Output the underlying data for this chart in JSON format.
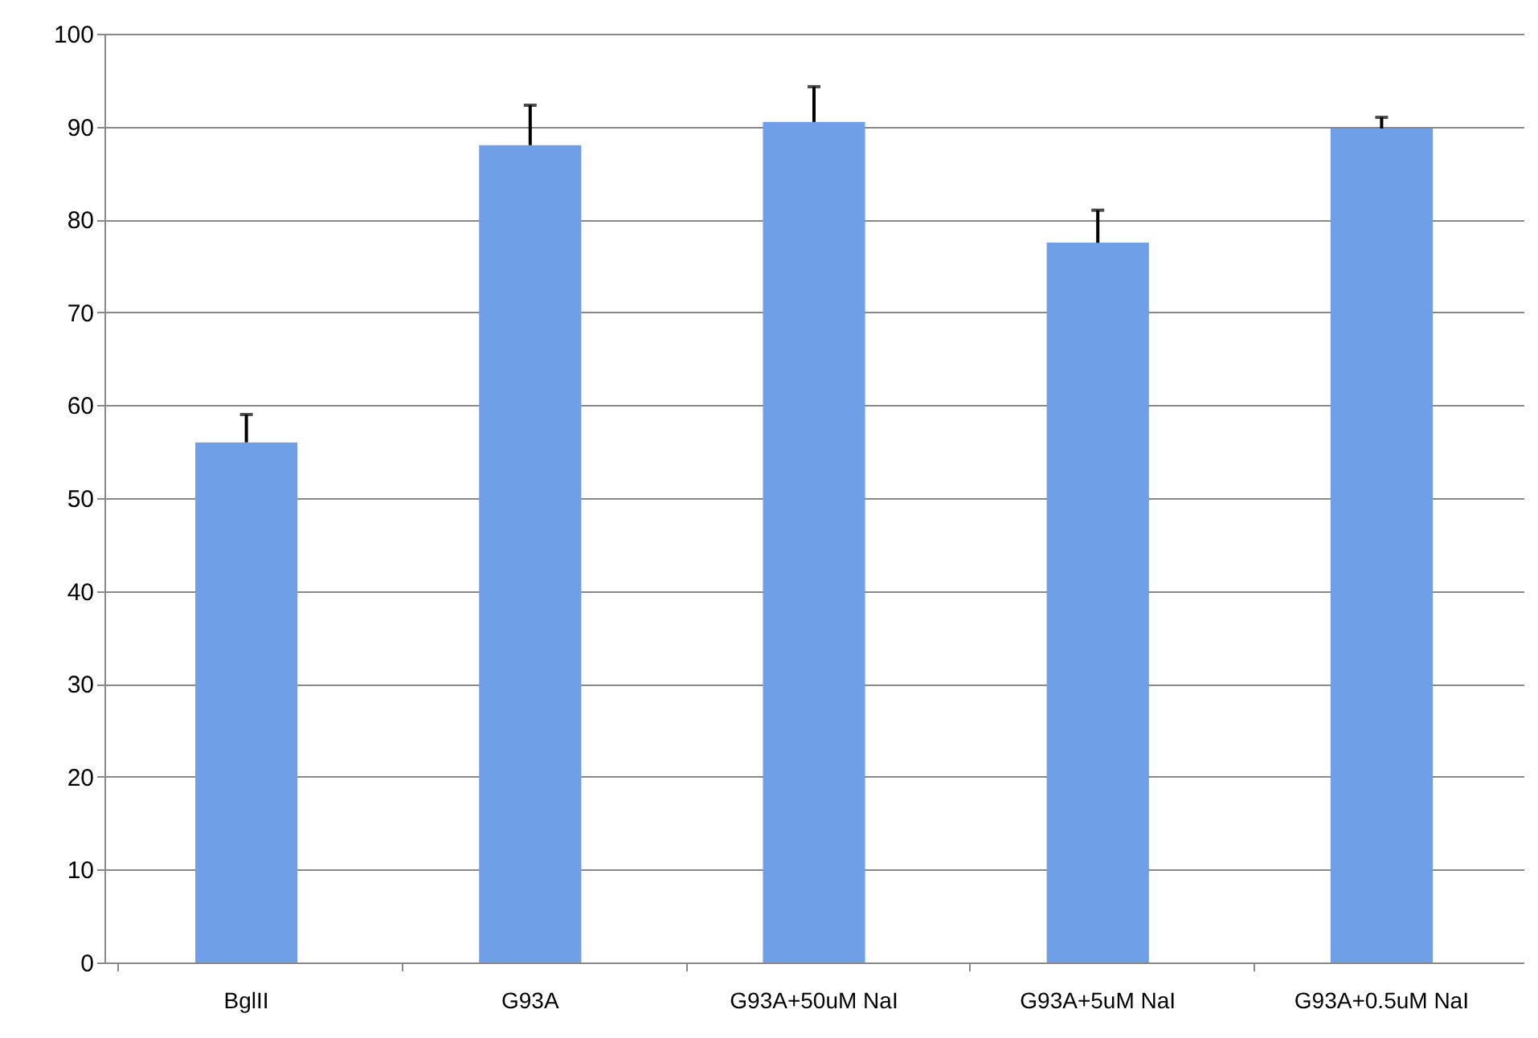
{
  "chart_data": {
    "type": "bar",
    "categories": [
      "BglII",
      "G93A",
      "G93A+50uM NaI",
      "G93A+5uM NaI",
      "G93A+0.5uM NaI"
    ],
    "values": [
      56,
      88,
      90.5,
      77.5,
      89.8
    ],
    "errors": [
      [
        56,
        59
      ],
      [
        88,
        92.3
      ],
      [
        90.5,
        94.3
      ],
      [
        77.5,
        81
      ],
      [
        89.8,
        91
      ]
    ],
    "color": "#6f9fe6",
    "ylim": [
      0,
      100
    ],
    "yticks": [
      0,
      10,
      20,
      30,
      40,
      50,
      60,
      70,
      80,
      90,
      100
    ],
    "grid": "y"
  }
}
